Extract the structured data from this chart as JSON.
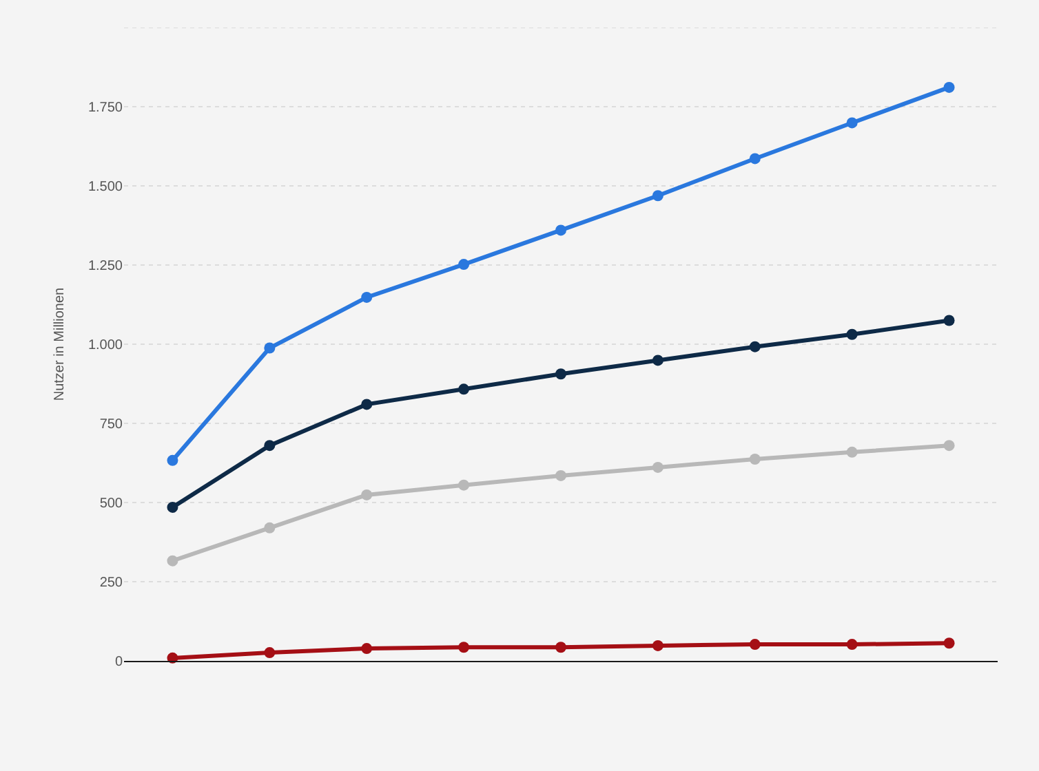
{
  "chart_data": {
    "type": "line",
    "ylabel": "Nutzer in Millionen",
    "categories": [
      null,
      null,
      null,
      null,
      null,
      null,
      null,
      null,
      null
    ],
    "series": [
      {
        "color": "#2a78de",
        "values": [
          633,
          988,
          1148,
          1252,
          1360,
          1469,
          1586,
          1699,
          1811
        ]
      },
      {
        "color": "#0e2a47",
        "values": [
          485,
          680,
          810,
          858,
          906,
          949,
          992,
          1031,
          1075
        ]
      },
      {
        "color": "#b8b8b8",
        "values": [
          316,
          420,
          524,
          555,
          585,
          611,
          637,
          659,
          680
        ]
      },
      {
        "color": "#a50f15",
        "values": [
          9,
          26,
          39,
          43,
          43,
          48,
          52,
          52,
          56
        ]
      }
    ],
    "ylim": [
      0,
      2000
    ],
    "yticks": [
      0,
      250,
      500,
      750,
      {
        "value": 1000,
        "label": "1.000"
      },
      {
        "value": 1250,
        "label": "1.250"
      },
      {
        "value": 1500,
        "label": "1.500"
      },
      {
        "value": 1750,
        "label": "1.750"
      },
      {
        "value": 2000,
        "label": null
      }
    ],
    "grid": "y",
    "legend": false,
    "marker": "circle",
    "line_style": "solid",
    "tick_labels": "y"
  }
}
